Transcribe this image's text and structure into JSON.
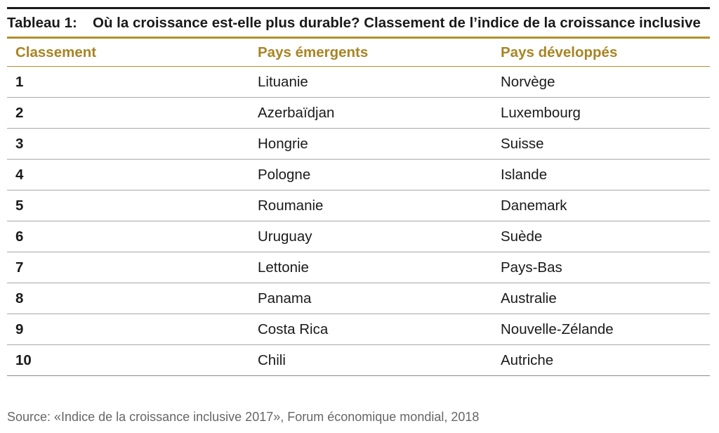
{
  "table": {
    "caption_label": "Tableau 1:",
    "caption_text": "Où la croissance est-elle plus durable? Classement de l’indice de la croissance inclusive",
    "headers": [
      "Classement",
      "Pays émergents",
      "Pays développés"
    ],
    "rows": [
      [
        "1",
        "Lituanie",
        "Norvège"
      ],
      [
        "2",
        "Azerbaïdjan",
        "Luxembourg"
      ],
      [
        "3",
        "Hongrie",
        "Suisse"
      ],
      [
        "4",
        "Pologne",
        "Islande"
      ],
      [
        "5",
        "Roumanie",
        "Danemark"
      ],
      [
        "6",
        "Uruguay",
        "Suède"
      ],
      [
        "7",
        "Lettonie",
        "Pays-Bas"
      ],
      [
        "8",
        "Panama",
        "Australie"
      ],
      [
        "9",
        "Costa Rica",
        "Nouvelle-Zélande"
      ],
      [
        "10",
        "Chili",
        "Autriche"
      ]
    ]
  },
  "source": "Source: «Indice de la croissance inclusive 2017», Forum économique mondial, 2018",
  "colors": {
    "accent": "#a88424",
    "rule": "#1a1a1a",
    "source_text": "#666666"
  }
}
